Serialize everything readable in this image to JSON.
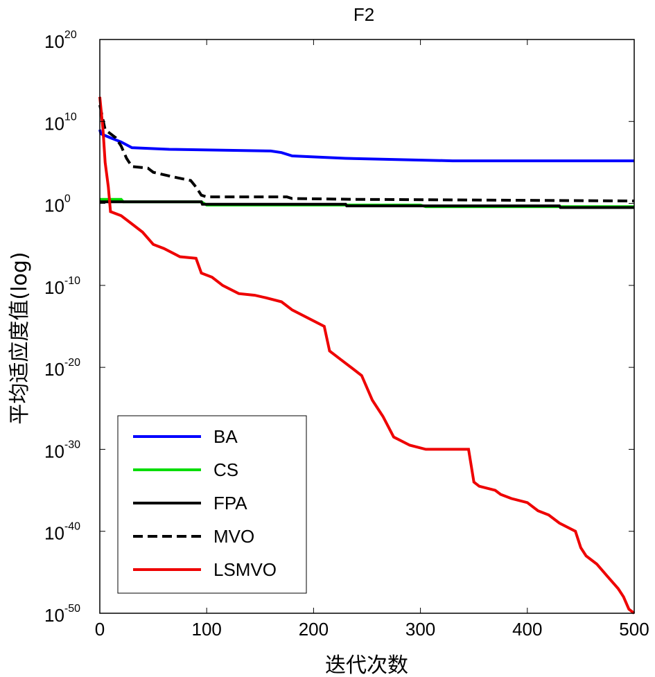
{
  "chart_data": {
    "type": "line",
    "title": "F2",
    "xlabel": "迭代次数",
    "ylabel": "平均适应度值(log)",
    "xlim": [
      0,
      500
    ],
    "ylim_exponent": [
      -50,
      20
    ],
    "y_scale": "log",
    "x_ticks": [
      "0",
      "100",
      "200",
      "300",
      "400",
      "500"
    ],
    "y_ticks": [
      {
        "base": "10",
        "exp": "20"
      },
      {
        "base": "10",
        "exp": "10"
      },
      {
        "base": "10",
        "exp": "0"
      },
      {
        "base": "10",
        "exp": "-10"
      },
      {
        "base": "10",
        "exp": "-20"
      },
      {
        "base": "10",
        "exp": "-30"
      },
      {
        "base": "10",
        "exp": "-40"
      },
      {
        "base": "10",
        "exp": "-50"
      }
    ],
    "legend_position": "bottom-left",
    "series": [
      {
        "name": "BA",
        "color": "#0000ff",
        "dash": "solid",
        "log10_y": [
          [
            0,
            9
          ],
          [
            1,
            8.5
          ],
          [
            10,
            8
          ],
          [
            20,
            7.5
          ],
          [
            30,
            6.8
          ],
          [
            65,
            6.6
          ],
          [
            160,
            6.4
          ],
          [
            170,
            6.2
          ],
          [
            180,
            5.8
          ],
          [
            230,
            5.5
          ],
          [
            330,
            5.2
          ],
          [
            500,
            5.2
          ]
        ]
      },
      {
        "name": "CS",
        "color": "#00dd00",
        "dash": "solid",
        "log10_y": [
          [
            0,
            0.5
          ],
          [
            20,
            0.5
          ],
          [
            22,
            0.2
          ],
          [
            95,
            0.2
          ],
          [
            100,
            -0.2
          ],
          [
            300,
            -0.2
          ],
          [
            305,
            -0.4
          ],
          [
            500,
            -0.4
          ]
        ]
      },
      {
        "name": "FPA",
        "color": "#000000",
        "dash": "solid",
        "log10_y": [
          [
            0,
            0.2
          ],
          [
            95,
            0.2
          ],
          [
            96,
            -0.1
          ],
          [
            230,
            -0.1
          ],
          [
            231,
            -0.3
          ],
          [
            430,
            -0.3
          ],
          [
            431,
            -0.5
          ],
          [
            500,
            -0.5
          ]
        ]
      },
      {
        "name": "MVO",
        "color": "#000000",
        "dash": "dashed",
        "log10_y": [
          [
            0,
            12
          ],
          [
            5,
            9
          ],
          [
            15,
            8
          ],
          [
            20,
            7
          ],
          [
            25,
            5.5
          ],
          [
            30,
            4.5
          ],
          [
            45,
            4.3
          ],
          [
            50,
            3.8
          ],
          [
            70,
            3.2
          ],
          [
            85,
            2.8
          ],
          [
            90,
            2.0
          ],
          [
            95,
            1.0
          ],
          [
            100,
            0.8
          ],
          [
            175,
            0.8
          ],
          [
            180,
            0.6
          ],
          [
            240,
            0.5
          ],
          [
            500,
            0.3
          ]
        ]
      },
      {
        "name": "LSMVO",
        "color": "#ee0000",
        "dash": "solid",
        "log10_y": [
          [
            0,
            13
          ],
          [
            3,
            9
          ],
          [
            5,
            5
          ],
          [
            8,
            2
          ],
          [
            10,
            -1
          ],
          [
            20,
            -1.5
          ],
          [
            30,
            -2.5
          ],
          [
            40,
            -3.5
          ],
          [
            50,
            -5
          ],
          [
            60,
            -5.5
          ],
          [
            75,
            -6.5
          ],
          [
            90,
            -6.7
          ],
          [
            95,
            -8.5
          ],
          [
            105,
            -9
          ],
          [
            115,
            -10
          ],
          [
            130,
            -11
          ],
          [
            145,
            -11.2
          ],
          [
            155,
            -11.5
          ],
          [
            170,
            -12
          ],
          [
            180,
            -13
          ],
          [
            210,
            -15
          ],
          [
            215,
            -18
          ],
          [
            225,
            -19
          ],
          [
            235,
            -20
          ],
          [
            245,
            -21
          ],
          [
            255,
            -24
          ],
          [
            265,
            -26
          ],
          [
            275,
            -28.5
          ],
          [
            290,
            -29.5
          ],
          [
            305,
            -30
          ],
          [
            345,
            -30
          ],
          [
            350,
            -34
          ],
          [
            355,
            -34.5
          ],
          [
            370,
            -35
          ],
          [
            375,
            -35.5
          ],
          [
            385,
            -36
          ],
          [
            400,
            -36.5
          ],
          [
            410,
            -37.5
          ],
          [
            420,
            -38
          ],
          [
            430,
            -39
          ],
          [
            445,
            -40
          ],
          [
            450,
            -42
          ],
          [
            455,
            -43
          ],
          [
            465,
            -44
          ],
          [
            475,
            -45.5
          ],
          [
            485,
            -47
          ],
          [
            490,
            -48
          ],
          [
            495,
            -49.5
          ],
          [
            500,
            -50
          ]
        ]
      }
    ]
  }
}
